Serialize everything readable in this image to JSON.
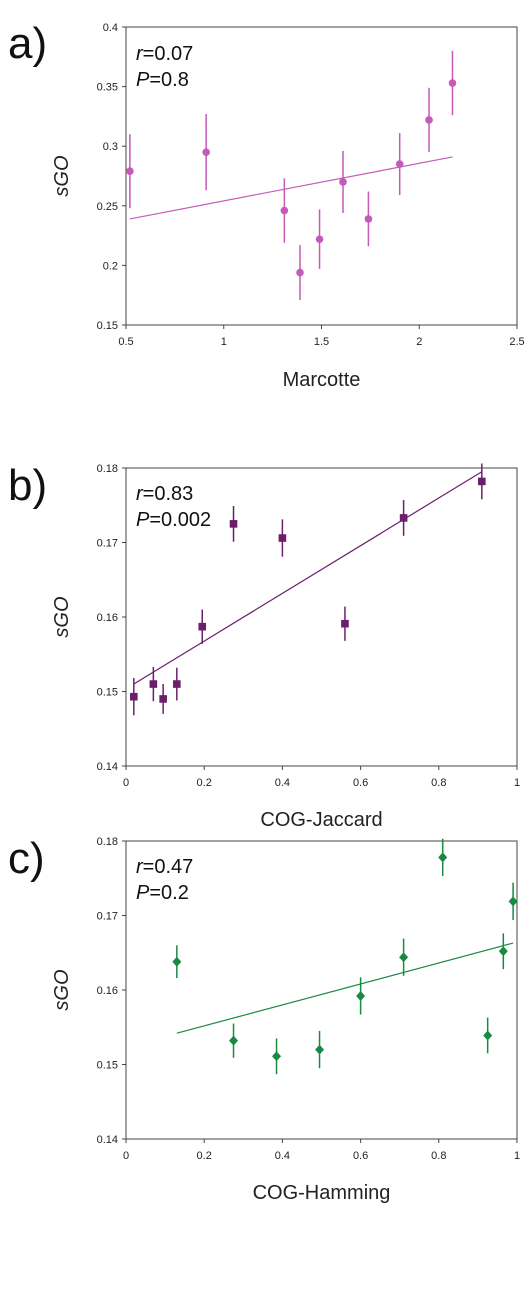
{
  "chart_data": [
    {
      "type": "scatter",
      "panel_label": "a)",
      "xlabel": "Marcotte",
      "ylabel": "sGO",
      "xlim": [
        0.5,
        2.5
      ],
      "ylim": [
        0.15,
        0.4
      ],
      "xticks": [
        0.5,
        1,
        1.5,
        2,
        2.5
      ],
      "xtick_labels": [
        "0.5",
        "1",
        "1.5",
        "2",
        "2.5"
      ],
      "yticks": [
        0.15,
        0.2,
        0.25,
        0.3,
        0.35,
        0.4
      ],
      "ytick_labels": [
        "0.15",
        "0.2",
        "0.25",
        "0.3",
        "0.35",
        "0.4"
      ],
      "marker": "circle",
      "color": "#c55ab9",
      "stats": {
        "r_key": "r",
        "r_value": "=0.07",
        "p_key": "P",
        "p_value": "=0.8"
      },
      "points": [
        {
          "x": 0.52,
          "y": 0.279,
          "err": 0.031
        },
        {
          "x": 0.91,
          "y": 0.295,
          "err": 0.032
        },
        {
          "x": 1.31,
          "y": 0.246,
          "err": 0.027
        },
        {
          "x": 1.39,
          "y": 0.194,
          "err": 0.023
        },
        {
          "x": 1.49,
          "y": 0.222,
          "err": 0.025
        },
        {
          "x": 1.61,
          "y": 0.27,
          "err": 0.026
        },
        {
          "x": 1.74,
          "y": 0.239,
          "err": 0.023
        },
        {
          "x": 1.9,
          "y": 0.285,
          "err": 0.026
        },
        {
          "x": 2.05,
          "y": 0.322,
          "err": 0.027
        },
        {
          "x": 2.17,
          "y": 0.353,
          "err": 0.027
        }
      ],
      "trendline": {
        "x": [
          0.52,
          2.17
        ],
        "y": [
          0.239,
          0.291
        ]
      }
    },
    {
      "type": "scatter",
      "panel_label": "b)",
      "xlabel": "COG-Jaccard",
      "ylabel": "sGO",
      "xlim": [
        0,
        1
      ],
      "ylim": [
        0.14,
        0.18
      ],
      "xticks": [
        0,
        0.2,
        0.4,
        0.6,
        0.8,
        1
      ],
      "xtick_labels": [
        "0",
        "0.2",
        "0.4",
        "0.6",
        "0.8",
        "1"
      ],
      "yticks": [
        0.14,
        0.15,
        0.16,
        0.17,
        0.18
      ],
      "ytick_labels": [
        "0.14",
        "0.15",
        "0.16",
        "0.17",
        "0.18"
      ],
      "marker": "square",
      "color": "#6b1f6b",
      "stats": {
        "r_key": "r",
        "r_value": "=0.83",
        "p_key": "P",
        "p_value": "=0.002"
      },
      "points": [
        {
          "x": 0.02,
          "y": 0.1493,
          "err": 0.0025
        },
        {
          "x": 0.07,
          "y": 0.151,
          "err": 0.0023
        },
        {
          "x": 0.095,
          "y": 0.149,
          "err": 0.002
        },
        {
          "x": 0.13,
          "y": 0.151,
          "err": 0.0022
        },
        {
          "x": 0.195,
          "y": 0.1587,
          "err": 0.0023
        },
        {
          "x": 0.275,
          "y": 0.1725,
          "err": 0.0024
        },
        {
          "x": 0.4,
          "y": 0.1706,
          "err": 0.0025
        },
        {
          "x": 0.56,
          "y": 0.1591,
          "err": 0.0023
        },
        {
          "x": 0.71,
          "y": 0.1733,
          "err": 0.0024
        },
        {
          "x": 0.91,
          "y": 0.1782,
          "err": 0.0024
        }
      ],
      "trendline": {
        "x": [
          0.02,
          0.91
        ],
        "y": [
          0.151,
          0.1795
        ]
      }
    },
    {
      "type": "scatter",
      "panel_label": "c)",
      "xlabel": "COG-Hamming",
      "ylabel": "sGO",
      "xlim": [
        0,
        1
      ],
      "ylim": [
        0.14,
        0.18
      ],
      "xticks": [
        0,
        0.2,
        0.4,
        0.6,
        0.8,
        1
      ],
      "xtick_labels": [
        "0",
        "0.2",
        "0.4",
        "0.6",
        "0.8",
        "1"
      ],
      "yticks": [
        0.14,
        0.15,
        0.16,
        0.17,
        0.18
      ],
      "ytick_labels": [
        "0.14",
        "0.15",
        "0.16",
        "0.17",
        "0.18"
      ],
      "marker": "diamond",
      "color": "#1a8a43",
      "stats": {
        "r_key": "r",
        "r_value": "=0.47",
        "p_key": "P",
        "p_value": "=0.2"
      },
      "points": [
        {
          "x": 0.13,
          "y": 0.1638,
          "err": 0.0022
        },
        {
          "x": 0.275,
          "y": 0.1532,
          "err": 0.0023
        },
        {
          "x": 0.385,
          "y": 0.1511,
          "err": 0.0024
        },
        {
          "x": 0.495,
          "y": 0.152,
          "err": 0.0025
        },
        {
          "x": 0.6,
          "y": 0.1592,
          "err": 0.0025
        },
        {
          "x": 0.71,
          "y": 0.1644,
          "err": 0.0025
        },
        {
          "x": 0.81,
          "y": 0.1778,
          "err": 0.0025
        },
        {
          "x": 0.925,
          "y": 0.1539,
          "err": 0.0024
        },
        {
          "x": 0.965,
          "y": 0.1652,
          "err": 0.0024
        },
        {
          "x": 0.99,
          "y": 0.1719,
          "err": 0.0025
        }
      ],
      "trendline": {
        "x": [
          0.13,
          0.99
        ],
        "y": [
          0.1542,
          0.1663
        ]
      }
    }
  ]
}
